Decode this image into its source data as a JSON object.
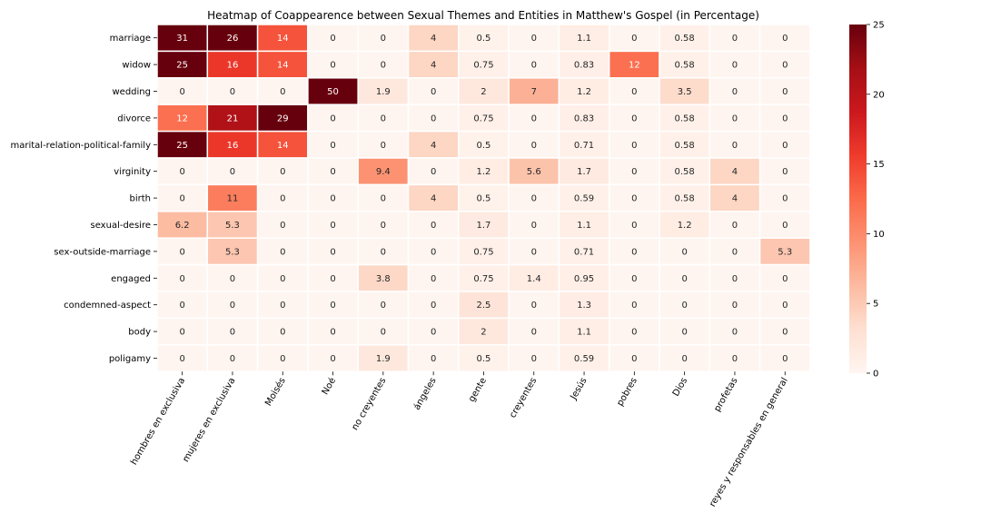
{
  "chart_data": {
    "type": "heatmap",
    "title": "Heatmap of Coappearence between Sexual Themes and Entities in Matthew's Gospel (in Percentage)",
    "xlabel": "",
    "ylabel": "",
    "rows": [
      "marriage",
      "widow",
      "wedding",
      "divorce",
      "marital-relation-political-family",
      "virginity",
      "birth",
      "sexual-desire",
      "sex-outside-marriage",
      "engaged",
      "condemned-aspect",
      "body",
      "poligamy"
    ],
    "columns": [
      "hombres en exclusiva",
      "mujeres en exclusiva",
      "Moisés",
      "Noé",
      "no creyentes",
      "ángeles",
      "gente",
      "creyentes",
      "Jesús",
      "pobres",
      "Dios",
      "profetas",
      "reyes y responsables en general"
    ],
    "values": [
      [
        31,
        26,
        14,
        0,
        0,
        4,
        0.5,
        0,
        1.1,
        0,
        0.58,
        0,
        0
      ],
      [
        25,
        16,
        14,
        0,
        0,
        4,
        0.75,
        0,
        0.83,
        12,
        0.58,
        0,
        0
      ],
      [
        0,
        0,
        0,
        50,
        1.9,
        0,
        2,
        7,
        1.2,
        0,
        3.5,
        0,
        0
      ],
      [
        12,
        21,
        29,
        0,
        0,
        0,
        0.75,
        0,
        0.83,
        0,
        0.58,
        0,
        0
      ],
      [
        25,
        16,
        14,
        0,
        0,
        4,
        0.5,
        0,
        0.71,
        0,
        0.58,
        0,
        0
      ],
      [
        0,
        0,
        0,
        0,
        9.4,
        0,
        1.2,
        5.6,
        1.7,
        0,
        0.58,
        4,
        0
      ],
      [
        0,
        11,
        0,
        0,
        0,
        4,
        0.5,
        0,
        0.59,
        0,
        0.58,
        4,
        0
      ],
      [
        6.2,
        5.3,
        0,
        0,
        0,
        0,
        1.7,
        0,
        1.1,
        0,
        1.2,
        0,
        0
      ],
      [
        0,
        5.3,
        0,
        0,
        0,
        0,
        0.75,
        0,
        0.71,
        0,
        0,
        0,
        5.3
      ],
      [
        0,
        0,
        0,
        0,
        3.8,
        0,
        0.75,
        1.4,
        0.95,
        0,
        0,
        0,
        0
      ],
      [
        0,
        0,
        0,
        0,
        0,
        0,
        2.5,
        0,
        1.3,
        0,
        0,
        0,
        0
      ],
      [
        0,
        0,
        0,
        0,
        0,
        0,
        2,
        0,
        1.1,
        0,
        0,
        0,
        0
      ],
      [
        0,
        0,
        0,
        0,
        1.9,
        0,
        0.5,
        0,
        0.59,
        0,
        0,
        0,
        0
      ]
    ],
    "colormap": "Reds",
    "vmin": 0,
    "vmax": 25,
    "colorbar_ticks": [
      0,
      5,
      10,
      15,
      20,
      25
    ],
    "annotations": true,
    "grid": false,
    "legend": "colorbar-right"
  }
}
